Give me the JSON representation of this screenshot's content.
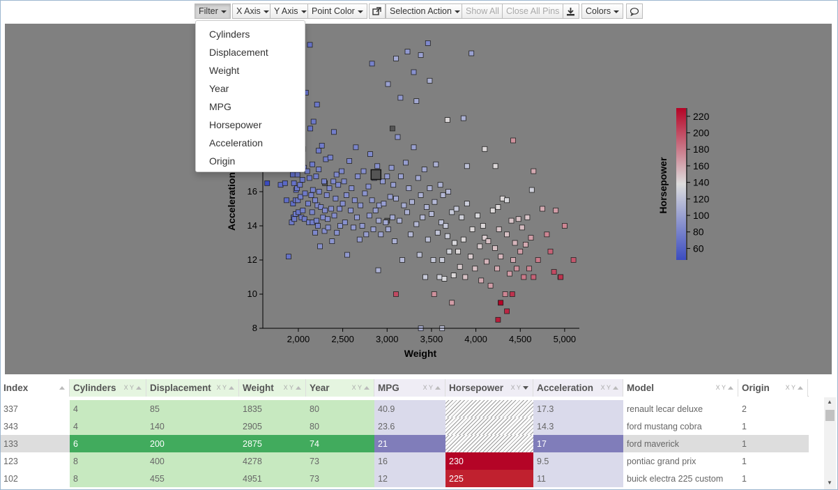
{
  "toolbar": {
    "filter": "Filter",
    "x_axis": "X Axis",
    "y_axis": "Y Axis",
    "point_color": "Point Color",
    "selection_action": "Selection Action",
    "show_all": "Show All",
    "close_all_pins": "Close All Pins",
    "colors": "Colors"
  },
  "filter_menu": [
    "Cylinders",
    "Displacement",
    "Weight",
    "Year",
    "MPG",
    "Horsepower",
    "Acceleration",
    "Origin"
  ],
  "chart_data": {
    "type": "scatter",
    "xlabel": "Weight",
    "ylabel": "Acceleration",
    "xlim": [
      1600,
      5150
    ],
    "ylim": [
      8,
      25.5
    ],
    "x_ticks": [
      "2,000",
      "2,500",
      "3,000",
      "3,500",
      "4,000",
      "4,500",
      "5,000"
    ],
    "y_ticks": [
      "8",
      "10",
      "12",
      "14",
      "16"
    ],
    "colorbar": {
      "label": "Horsepower",
      "min": 46,
      "max": 230,
      "ticks": [
        "60",
        "80",
        "100",
        "120",
        "140",
        "160",
        "180",
        "200",
        "220"
      ]
    },
    "colors": {
      "background": "#808080",
      "low": "#3b4cc0",
      "mid": "#dddddd",
      "high": "#b40426"
    },
    "points": [
      [
        1835,
        17.3,
        55
      ],
      [
        2905,
        14.3,
        105
      ],
      [
        4278,
        9.5,
        230
      ],
      [
        4951,
        11,
        225
      ],
      [
        2875,
        17,
        null
      ],
      [
        2300,
        16.5,
        null
      ],
      [
        3000,
        14.3,
        null
      ],
      [
        3060,
        19.7,
        null
      ],
      [
        1613,
        18,
        52
      ],
      [
        1649,
        16.5,
        46
      ],
      [
        1755,
        17.4,
        60
      ],
      [
        1760,
        19.4,
        58
      ],
      [
        1773,
        19,
        61
      ],
      [
        1795,
        17.5,
        65
      ],
      [
        1800,
        16.4,
        67
      ],
      [
        1825,
        18.6,
        62
      ],
      [
        1834,
        19,
        65
      ],
      [
        1845,
        19,
        67
      ],
      [
        1850,
        16.5,
        65
      ],
      [
        1867,
        15.5,
        67
      ],
      [
        1875,
        18.2,
        68
      ],
      [
        1890,
        12.2,
        70
      ],
      [
        1925,
        14.2,
        75
      ],
      [
        1937,
        17,
        67
      ],
      [
        1940,
        15.3,
        68
      ],
      [
        1945,
        14.5,
        70
      ],
      [
        1950,
        16.5,
        71
      ],
      [
        1955,
        14.4,
        75
      ],
      [
        1963,
        18.1,
        76
      ],
      [
        1965,
        17.6,
        70
      ],
      [
        1968,
        15.5,
        72
      ],
      [
        1970,
        14.7,
        75
      ],
      [
        1975,
        16.1,
        70
      ],
      [
        1980,
        18.6,
        68
      ],
      [
        1985,
        16.2,
        72
      ],
      [
        1990,
        17,
        74
      ],
      [
        1995,
        15.5,
        75
      ],
      [
        2000,
        14.8,
        72
      ],
      [
        2003,
        17.5,
        74
      ],
      [
        2019,
        16.4,
        76
      ],
      [
        2020,
        19.2,
        72
      ],
      [
        2025,
        15.7,
        78
      ],
      [
        2035,
        14.5,
        76
      ],
      [
        2045,
        16.7,
        74
      ],
      [
        2050,
        14.9,
        78
      ],
      [
        2051,
        18.5,
        72
      ],
      [
        2065,
        17.4,
        78
      ],
      [
        2070,
        14.4,
        75
      ],
      [
        2075,
        15.9,
        76
      ],
      [
        2085,
        21.8,
        70
      ],
      [
        2100,
        17.2,
        78
      ],
      [
        2110,
        15.3,
        79
      ],
      [
        2120,
        14.2,
        80
      ],
      [
        2125,
        16.8,
        76
      ],
      [
        2130,
        24.6,
        71
      ],
      [
        2135,
        19.7,
        72
      ],
      [
        2145,
        15.8,
        80
      ],
      [
        2155,
        14.8,
        82
      ],
      [
        2158,
        17.6,
        75
      ],
      [
        2160,
        14.2,
        78
      ],
      [
        2164,
        16.1,
        80
      ],
      [
        2171,
        20.1,
        74
      ],
      [
        2189,
        15.5,
        83
      ],
      [
        2190,
        13.6,
        84
      ],
      [
        2200,
        16.9,
        78
      ],
      [
        2205,
        14.3,
        82
      ],
      [
        2210,
        21.1,
        73
      ],
      [
        2215,
        15.2,
        85
      ],
      [
        2220,
        14,
        80
      ],
      [
        2228,
        18.4,
        76
      ],
      [
        2230,
        17.3,
        80
      ],
      [
        2234,
        16,
        82
      ],
      [
        2245,
        12.8,
        90
      ],
      [
        2254,
        15.1,
        84
      ],
      [
        2265,
        18.7,
        76
      ],
      [
        2278,
        14.5,
        86
      ],
      [
        2290,
        16.6,
        82
      ],
      [
        2295,
        13.7,
        88
      ],
      [
        2300,
        14.9,
        85
      ],
      [
        2310,
        17.9,
        78
      ],
      [
        2320,
        15.8,
        85
      ],
      [
        2330,
        14.4,
        88
      ],
      [
        2335,
        13.9,
        90
      ],
      [
        2350,
        16.2,
        84
      ],
      [
        2360,
        18,
        80
      ],
      [
        2370,
        15,
        88
      ],
      [
        2380,
        13.1,
        92
      ],
      [
        2395,
        16.6,
        85
      ],
      [
        2400,
        19.5,
        78
      ],
      [
        2405,
        14.6,
        88
      ],
      [
        2420,
        15.6,
        86
      ],
      [
        2430,
        17,
        84
      ],
      [
        2434,
        13.6,
        90
      ],
      [
        2450,
        16.4,
        85
      ],
      [
        2465,
        15,
        88
      ],
      [
        2472,
        14,
        92
      ],
      [
        2488,
        17.2,
        84
      ],
      [
        2500,
        15.3,
        88
      ],
      [
        2515,
        16.6,
        86
      ],
      [
        2525,
        14.2,
        90
      ],
      [
        2542,
        15.8,
        88
      ],
      [
        2550,
        12.3,
        95
      ],
      [
        2575,
        17.8,
        84
      ],
      [
        2590,
        14.9,
        92
      ],
      [
        2600,
        16.2,
        88
      ],
      [
        2620,
        13.9,
        95
      ],
      [
        2635,
        15.5,
        90
      ],
      [
        2648,
        18.6,
        82
      ],
      [
        2660,
        14.5,
        95
      ],
      [
        2670,
        16.9,
        88
      ],
      [
        2690,
        13.2,
        98
      ],
      [
        2700,
        15.2,
        92
      ],
      [
        2720,
        14,
        95
      ],
      [
        2735,
        17.2,
        88
      ],
      [
        2750,
        15.9,
        92
      ],
      [
        2765,
        13.5,
        98
      ],
      [
        2790,
        16.3,
        90
      ],
      [
        2800,
        14.6,
        96
      ],
      [
        2810,
        18.2,
        86
      ],
      [
        2830,
        15.5,
        95
      ],
      [
        2845,
        13.8,
        100
      ],
      [
        2855,
        16.8,
        92
      ],
      [
        2870,
        14.9,
        98
      ],
      [
        2890,
        17.5,
        90
      ],
      [
        2900,
        11.4,
        110
      ],
      [
        2910,
        15.2,
        97
      ],
      [
        2930,
        13.5,
        102
      ],
      [
        2950,
        16.6,
        95
      ],
      [
        2962,
        15.3,
        98
      ],
      [
        2985,
        14.2,
        105
      ],
      [
        3000,
        16.9,
        95
      ],
      [
        3012,
        13.8,
        105
      ],
      [
        3035,
        15.7,
        100
      ],
      [
        3050,
        17.4,
        95
      ],
      [
        3060,
        14.5,
        105
      ],
      [
        3070,
        16.4,
        98
      ],
      [
        3085,
        13.1,
        110
      ],
      [
        3100,
        15.6,
        105
      ],
      [
        3120,
        19.2,
        92
      ],
      [
        3139,
        14.3,
        110
      ],
      [
        3155,
        16.9,
        100
      ],
      [
        3170,
        12,
        115
      ],
      [
        3190,
        15.2,
        108
      ],
      [
        3210,
        17.7,
        98
      ],
      [
        3225,
        14.8,
        110
      ],
      [
        3245,
        16.2,
        105
      ],
      [
        3265,
        13.5,
        115
      ],
      [
        3280,
        15.4,
        110
      ],
      [
        3300,
        18.6,
        100
      ],
      [
        3330,
        14.1,
        115
      ],
      [
        3350,
        16.8,
        105
      ],
      [
        3365,
        12.3,
        120
      ],
      [
        3380,
        15.8,
        110
      ],
      [
        3400,
        14.5,
        115
      ],
      [
        3420,
        17.3,
        105
      ],
      [
        3430,
        11,
        125
      ],
      [
        3445,
        15.1,
        112
      ],
      [
        3460,
        13.2,
        120
      ],
      [
        3480,
        16.2,
        110
      ],
      [
        3500,
        14.7,
        115
      ],
      [
        3520,
        12,
        125
      ],
      [
        3535,
        15.4,
        115
      ],
      [
        3550,
        17.6,
        110
      ],
      [
        3570,
        13.6,
        122
      ],
      [
        3590,
        11,
        130
      ],
      [
        3600,
        16.4,
        112
      ],
      [
        3610,
        14.2,
        120
      ],
      [
        3620,
        12,
        128
      ],
      [
        3630,
        15.8,
        115
      ],
      [
        3645,
        10.9,
        135
      ],
      [
        3660,
        14,
        125
      ],
      [
        3680,
        13.4,
        128
      ],
      [
        3690,
        16,
        115
      ],
      [
        3700,
        12.5,
        132
      ],
      [
        3730,
        14.8,
        125
      ],
      [
        3750,
        11.1,
        140
      ],
      [
        3760,
        13,
        135
      ],
      [
        3780,
        15,
        125
      ],
      [
        3800,
        12.5,
        140
      ],
      [
        3820,
        11.6,
        145
      ],
      [
        3840,
        14.5,
        130
      ],
      [
        3860,
        13.2,
        140
      ],
      [
        3880,
        11,
        150
      ],
      [
        3900,
        15.3,
        128
      ],
      [
        3940,
        12.2,
        145
      ],
      [
        3960,
        13.8,
        140
      ],
      [
        3990,
        11.5,
        150
      ],
      [
        4020,
        14.6,
        135
      ],
      [
        4045,
        12.8,
        145
      ],
      [
        4060,
        10.8,
        160
      ],
      [
        4080,
        14,
        140
      ],
      [
        4100,
        13.3,
        145
      ],
      [
        4120,
        11.9,
        155
      ],
      [
        4140,
        13.1,
        150
      ],
      [
        4165,
        10.5,
        165
      ],
      [
        4190,
        14.9,
        140
      ],
      [
        4215,
        12.7,
        150
      ],
      [
        4240,
        11.5,
        160
      ],
      [
        4260,
        13.8,
        148
      ],
      [
        4280,
        12.2,
        155
      ],
      [
        4300,
        15.6,
        140
      ],
      [
        4330,
        10,
        175
      ],
      [
        4350,
        13.5,
        150
      ],
      [
        4380,
        11.2,
        165
      ],
      [
        4400,
        14.3,
        148
      ],
      [
        4420,
        12,
        160
      ],
      [
        4440,
        13,
        155
      ],
      [
        4460,
        11.5,
        170
      ],
      [
        4480,
        14.4,
        150
      ],
      [
        4500,
        12.5,
        165
      ],
      [
        4520,
        13.9,
        152
      ],
      [
        4540,
        11,
        180
      ],
      [
        4560,
        12.9,
        160
      ],
      [
        4580,
        14.5,
        148
      ],
      [
        4600,
        11.5,
        175
      ],
      [
        4620,
        13.3,
        165
      ],
      [
        4650,
        11,
        190
      ],
      [
        4700,
        12,
        180
      ],
      [
        4750,
        15,
        160
      ],
      [
        4800,
        13.5,
        175
      ],
      [
        4840,
        12.5,
        190
      ],
      [
        4880,
        11.3,
        200
      ],
      [
        4900,
        14.9,
        165
      ],
      [
        4955,
        11,
        210
      ],
      [
        5000,
        14,
        175
      ],
      [
        5100,
        12,
        195
      ],
      [
        3620,
        8,
        120
      ],
      [
        3380,
        8,
        110
      ],
      [
        4250,
        8.5,
        220
      ],
      [
        4280,
        9.5,
        230
      ],
      [
        4350,
        9,
        215
      ],
      [
        4410,
        10,
        210
      ],
      [
        3100,
        10,
        200
      ],
      [
        3530,
        10,
        170
      ],
      [
        3730,
        9.5,
        165
      ],
      [
        4420,
        19,
        170
      ],
      [
        3680,
        20.2,
        140
      ],
      [
        3860,
        20.3,
        110
      ],
      [
        3330,
        21.3,
        105
      ],
      [
        3900,
        17.5,
        120
      ],
      [
        4100,
        18.5,
        140
      ],
      [
        4220,
        17.5,
        140
      ],
      [
        4630,
        16.1,
        130
      ],
      [
        4650,
        17.2,
        160
      ],
      [
        4350,
        15.5,
        135
      ],
      [
        4250,
        15.1,
        140
      ],
      [
        2830,
        23.5,
        80
      ],
      [
        3100,
        23.8,
        105
      ],
      [
        3950,
        24.1,
        100
      ],
      [
        3380,
        24,
        100
      ],
      [
        3460,
        24.7,
        85
      ],
      [
        3300,
        23,
        90
      ],
      [
        3230,
        24.2,
        95
      ],
      [
        3480,
        22.5,
        110
      ],
      [
        3010,
        22.3,
        100
      ],
      [
        3150,
        21.5,
        95
      ]
    ],
    "highlighted_point": [
      2875,
      17
    ]
  },
  "table": {
    "columns": [
      {
        "label": "Index",
        "ctrl": "",
        "sort": "up"
      },
      {
        "label": "Cylinders",
        "ctrl": "X Y",
        "sort": "up"
      },
      {
        "label": "Displacement",
        "ctrl": "X Y",
        "sort": "up"
      },
      {
        "label": "Weight",
        "ctrl": "X Y",
        "sort": "up"
      },
      {
        "label": "Year",
        "ctrl": "X Y",
        "sort": "up"
      },
      {
        "label": "MPG",
        "ctrl": "X Y",
        "sort": "up"
      },
      {
        "label": "Horsepower",
        "ctrl": "X Y",
        "sort": "down"
      },
      {
        "label": "Acceleration",
        "ctrl": "X Y",
        "sort": "up"
      },
      {
        "label": "Model",
        "ctrl": "X Y",
        "sort": "up"
      },
      {
        "label": "Origin",
        "ctrl": "X Y",
        "sort": "up"
      }
    ],
    "rows": [
      [
        "337",
        "4",
        "85",
        "1835",
        "80",
        "40.9",
        "",
        "17.3",
        "renault lecar deluxe",
        "2"
      ],
      [
        "343",
        "4",
        "140",
        "2905",
        "80",
        "23.6",
        "",
        "14.3",
        "ford mustang cobra",
        "1"
      ],
      [
        "133",
        "6",
        "200",
        "2875",
        "74",
        "21",
        "",
        "17",
        "ford maverick",
        "1"
      ],
      [
        "123",
        "8",
        "400",
        "4278",
        "73",
        "16",
        "230",
        "9.5",
        "pontiac grand prix",
        "1"
      ],
      [
        "102",
        "8",
        "455",
        "4951",
        "73",
        "12",
        "225",
        "11",
        "buick electra 225 custom",
        "1"
      ]
    ]
  }
}
